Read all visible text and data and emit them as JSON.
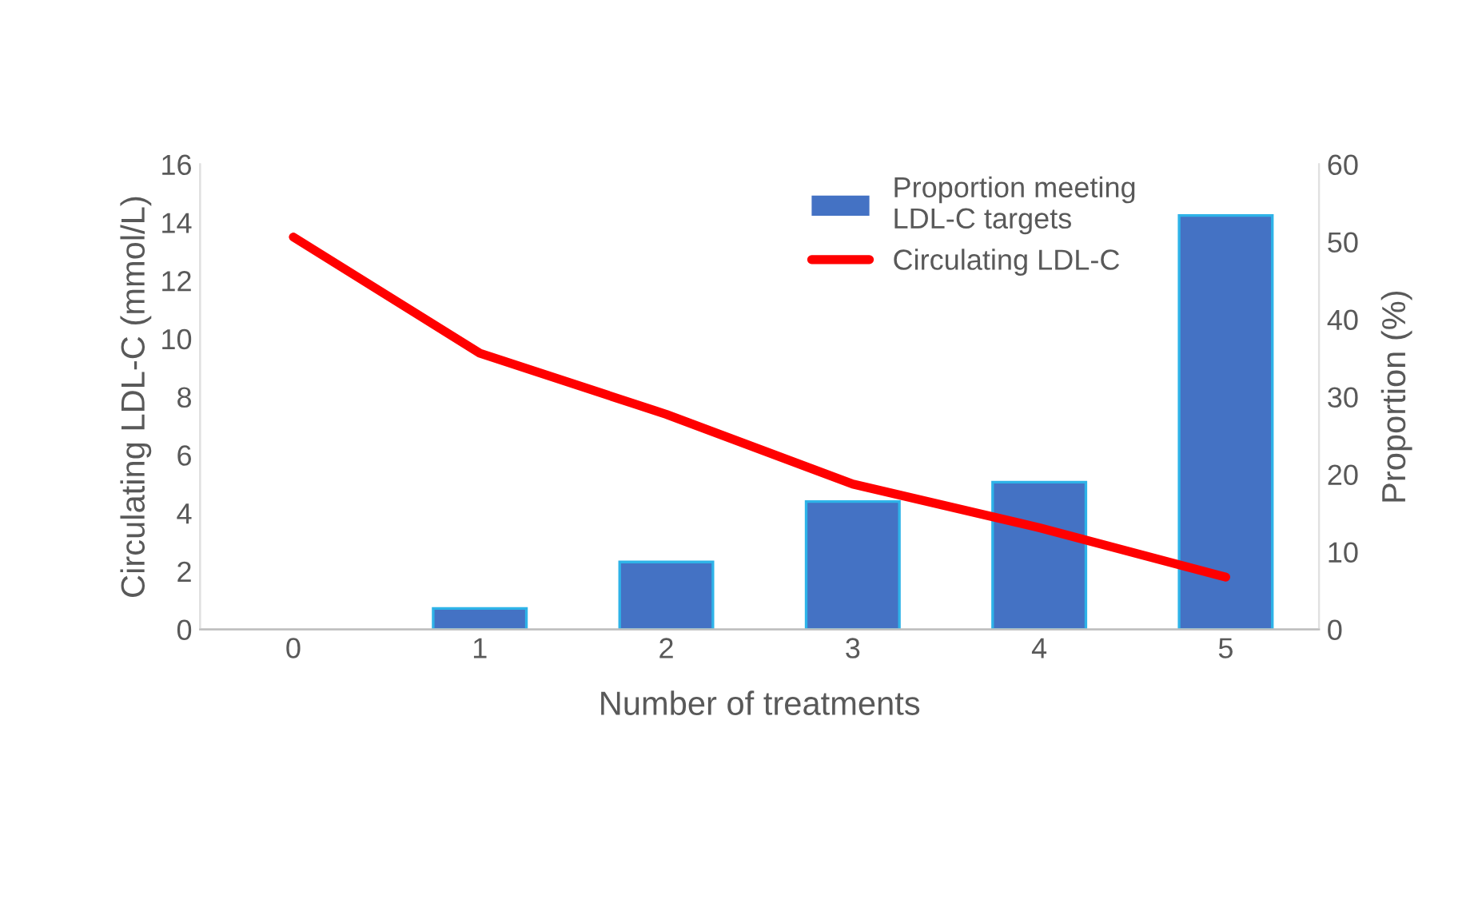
{
  "chart_data": {
    "type": "bar",
    "xlabel": "Number of treatments",
    "ylabel": "Circulating LDL-C (mmol/L)",
    "y2label": "Proportion (%)",
    "categories": [
      "0",
      "1",
      "2",
      "3",
      "4",
      "5"
    ],
    "series": [
      {
        "name": "Proportion meeting\nLDL-C targets",
        "axis": "y2",
        "color": "#4472c4",
        "values": [
          0,
          2.7,
          8.7,
          16.5,
          19.0,
          53.4
        ]
      },
      {
        "name": "Circulating LDL-C",
        "type": "line",
        "color": "#ff0000",
        "values": [
          13.5,
          9.5,
          7.4,
          5.0,
          3.5,
          1.8
        ]
      }
    ],
    "ylim": [
      0,
      16
    ],
    "yticks": [
      0,
      2,
      4,
      6,
      8,
      10,
      12,
      14,
      16
    ],
    "y2lim": [
      0,
      60
    ],
    "y2ticks": [
      0,
      10,
      20,
      30,
      40,
      50,
      60
    ],
    "grid": false,
    "legend": "top right"
  }
}
